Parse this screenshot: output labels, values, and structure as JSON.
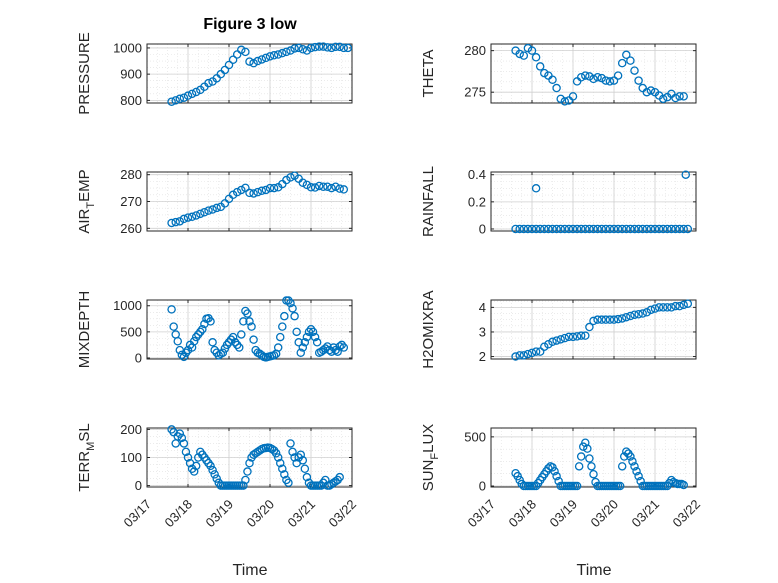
{
  "figure": {
    "title": "Figure 3 low",
    "marker_color": "#0072BD",
    "axis_color": "#262626",
    "grid_color": "#dfdfdf"
  },
  "chart_data": [
    {
      "type": "scatter",
      "id": "pressure",
      "ylabel": "PRESSURE",
      "ylim": [
        790,
        1015
      ],
      "yticks": [
        800,
        900,
        1000
      ],
      "xlim": [
        17,
        22
      ],
      "x": [
        17.6,
        17.7,
        17.8,
        17.9,
        18.0,
        18.1,
        18.2,
        18.3,
        18.4,
        18.5,
        18.6,
        18.7,
        18.8,
        18.9,
        19.0,
        19.1,
        19.2,
        19.3,
        19.4,
        19.5,
        19.6,
        19.7,
        19.8,
        19.9,
        20.0,
        20.1,
        20.2,
        20.3,
        20.4,
        20.5,
        20.6,
        20.7,
        20.8,
        20.9,
        21.0,
        21.1,
        21.2,
        21.3,
        21.4,
        21.5,
        21.6,
        21.7,
        21.8,
        21.9
      ],
      "y": [
        795,
        800,
        806,
        810,
        818,
        825,
        832,
        840,
        852,
        866,
        872,
        884,
        900,
        916,
        935,
        955,
        975,
        993,
        985,
        948,
        942,
        950,
        956,
        962,
        968,
        972,
        975,
        980,
        985,
        990,
        998,
        1000,
        995,
        990,
        1000,
        1003,
        1005,
        1005,
        1002,
        1000,
        1004,
        1004,
        1000,
        1000
      ]
    },
    {
      "type": "scatter",
      "id": "theta",
      "ylabel": "THETA",
      "ylim": [
        273.7,
        280.8
      ],
      "yticks": [
        275,
        280
      ],
      "xlim": [
        17,
        22
      ],
      "x": [
        17.6,
        17.7,
        17.8,
        17.9,
        18.0,
        18.1,
        18.2,
        18.3,
        18.4,
        18.5,
        18.6,
        18.7,
        18.8,
        18.9,
        19.0,
        19.1,
        19.2,
        19.3,
        19.4,
        19.5,
        19.6,
        19.7,
        19.8,
        19.9,
        20.0,
        20.1,
        20.2,
        20.3,
        20.4,
        20.5,
        20.6,
        20.7,
        20.8,
        20.9,
        21.0,
        21.1,
        21.2,
        21.3,
        21.4,
        21.5,
        21.6,
        21.7
      ],
      "y": [
        280,
        279.6,
        279.4,
        280.3,
        280,
        279.2,
        278.1,
        277.3,
        277,
        276.5,
        275.5,
        274.2,
        273.9,
        274,
        274.5,
        276.3,
        276.8,
        277,
        276.9,
        276.6,
        276.8,
        276.7,
        276.4,
        276.3,
        276.4,
        277,
        278.5,
        279.5,
        278.8,
        277.6,
        276.4,
        275.5,
        275,
        275.2,
        275,
        274.6,
        274.2,
        274.4,
        274.8,
        274.3,
        274.5,
        274.5
      ]
    },
    {
      "type": "scatter",
      "id": "air_temp",
      "ylabel": "AIR",
      "ylabel_sub": "T",
      "ylabel_post": "EMP",
      "ylim": [
        259,
        281
      ],
      "yticks": [
        260,
        270,
        280
      ],
      "xlim": [
        17,
        22
      ],
      "x": [
        17.6,
        17.7,
        17.8,
        17.9,
        18.0,
        18.1,
        18.2,
        18.3,
        18.4,
        18.5,
        18.6,
        18.7,
        18.8,
        18.9,
        19.0,
        19.1,
        19.2,
        19.3,
        19.4,
        19.5,
        19.6,
        19.7,
        19.8,
        19.9,
        20.0,
        20.1,
        20.2,
        20.3,
        20.4,
        20.5,
        20.6,
        20.7,
        20.8,
        20.9,
        21.0,
        21.1,
        21.2,
        21.3,
        21.4,
        21.5,
        21.6,
        21.7,
        21.8
      ],
      "y": [
        262,
        262.3,
        262.6,
        263.5,
        264,
        264.3,
        264.8,
        265.4,
        266,
        266.6,
        267,
        267.6,
        268,
        269.3,
        271,
        272.5,
        273.5,
        274.3,
        275.1,
        273.2,
        273,
        273.5,
        274,
        274.3,
        275,
        275,
        275.3,
        276.5,
        278,
        279,
        279.6,
        278.5,
        277,
        276.2,
        275.3,
        275.2,
        275.8,
        275.5,
        275.5,
        275,
        275.5,
        274.8,
        274.5
      ]
    },
    {
      "type": "scatter",
      "id": "rainfall",
      "ylabel": "RAINFALL",
      "ylim": [
        -0.015,
        0.42
      ],
      "yticks": [
        0,
        0.2,
        0.4
      ],
      "ytick_labels": [
        "0",
        "0.2",
        "0.4"
      ],
      "xlim": [
        17,
        22
      ],
      "x": [
        17.6,
        17.7,
        17.8,
        17.9,
        18.0,
        18.1,
        18.2,
        18.3,
        18.4,
        18.5,
        18.6,
        18.7,
        18.8,
        18.9,
        19.0,
        19.1,
        19.2,
        19.3,
        19.4,
        19.5,
        19.6,
        19.7,
        19.8,
        19.9,
        20.0,
        20.1,
        20.2,
        20.3,
        20.4,
        20.5,
        20.6,
        20.7,
        20.8,
        20.9,
        21.0,
        21.1,
        21.2,
        21.3,
        21.4,
        21.5,
        21.6,
        21.7,
        21.8,
        18.1,
        21.75
      ],
      "y": [
        0,
        0,
        0,
        0,
        0,
        0,
        0,
        0,
        0,
        0,
        0,
        0,
        0,
        0,
        0,
        0,
        0,
        0,
        0,
        0,
        0,
        0,
        0,
        0,
        0,
        0,
        0,
        0,
        0,
        0,
        0,
        0,
        0,
        0,
        0,
        0,
        0,
        0,
        0,
        0,
        0,
        0,
        0,
        0.3,
        0.4
      ]
    },
    {
      "type": "scatter",
      "id": "mixdepth",
      "ylabel": "MIXDEPTH",
      "ylim": [
        -20,
        1110
      ],
      "yticks": [
        0,
        500,
        1000
      ],
      "xlim": [
        17,
        22
      ],
      "x": [
        17.6,
        17.65,
        17.7,
        17.75,
        17.8,
        17.85,
        17.9,
        17.95,
        18.0,
        18.05,
        18.1,
        18.15,
        18.2,
        18.25,
        18.3,
        18.35,
        18.4,
        18.45,
        18.5,
        18.55,
        18.6,
        18.65,
        18.7,
        18.75,
        18.8,
        18.85,
        18.9,
        18.95,
        19.0,
        19.05,
        19.1,
        19.15,
        19.2,
        19.25,
        19.3,
        19.35,
        19.4,
        19.45,
        19.5,
        19.55,
        19.6,
        19.65,
        19.7,
        19.75,
        19.8,
        19.85,
        19.9,
        19.95,
        20.0,
        20.05,
        20.1,
        20.15,
        20.2,
        20.25,
        20.3,
        20.35,
        20.4,
        20.45,
        20.5,
        20.55,
        20.6,
        20.65,
        20.7,
        20.75,
        20.8,
        20.85,
        20.9,
        20.95,
        21.0,
        21.05,
        21.1,
        21.15,
        21.2,
        21.25,
        21.3,
        21.35,
        21.4,
        21.45,
        21.5,
        21.55,
        21.6,
        21.65,
        21.7,
        21.75,
        21.8
      ],
      "y": [
        930,
        600,
        450,
        320,
        150,
        60,
        20,
        100,
        150,
        250,
        200,
        320,
        400,
        450,
        500,
        550,
        650,
        750,
        760,
        700,
        300,
        150,
        100,
        50,
        80,
        100,
        180,
        250,
        300,
        350,
        400,
        300,
        250,
        200,
        450,
        700,
        900,
        850,
        700,
        600,
        350,
        150,
        100,
        80,
        50,
        20,
        10,
        20,
        30,
        40,
        50,
        80,
        200,
        400,
        600,
        800,
        1100,
        1100,
        1050,
        950,
        800,
        500,
        300,
        100,
        200,
        300,
        400,
        500,
        550,
        500,
        400,
        300,
        100,
        120,
        150,
        180,
        220,
        150,
        120,
        200,
        150,
        120,
        220,
        250,
        200
      ]
    },
    {
      "type": "scatter",
      "id": "h2omixra",
      "ylabel": "H2OMIXRA",
      "ylim": [
        1.9,
        4.3
      ],
      "yticks": [
        2,
        3,
        4
      ],
      "xlim": [
        17,
        22
      ],
      "x": [
        17.6,
        17.7,
        17.8,
        17.9,
        18.0,
        18.1,
        18.2,
        18.3,
        18.4,
        18.5,
        18.6,
        18.7,
        18.8,
        18.9,
        19.0,
        19.1,
        19.2,
        19.3,
        19.4,
        19.5,
        19.6,
        19.7,
        19.8,
        19.9,
        20.0,
        20.1,
        20.2,
        20.3,
        20.4,
        20.5,
        20.6,
        20.7,
        20.8,
        20.9,
        21.0,
        21.1,
        21.2,
        21.3,
        21.4,
        21.5,
        21.6,
        21.7,
        21.8
      ],
      "y": [
        2.0,
        2.05,
        2.05,
        2.1,
        2.15,
        2.2,
        2.2,
        2.4,
        2.5,
        2.6,
        2.65,
        2.7,
        2.75,
        2.8,
        2.8,
        2.82,
        2.85,
        2.85,
        3.2,
        3.45,
        3.5,
        3.5,
        3.5,
        3.5,
        3.5,
        3.52,
        3.55,
        3.6,
        3.65,
        3.7,
        3.72,
        3.75,
        3.8,
        3.9,
        3.95,
        4.0,
        4.0,
        4.0,
        4.0,
        4.05,
        4.05,
        4.1,
        4.15
      ]
    },
    {
      "type": "scatter",
      "id": "terr_msl",
      "ylabel": "TERR",
      "ylabel_sub": "M",
      "ylabel_post": "SL",
      "ylim": [
        -5,
        205
      ],
      "yticks": [
        0,
        100,
        200
      ],
      "xlim": [
        17,
        22
      ],
      "x": [
        17.6,
        17.65,
        17.7,
        17.75,
        17.8,
        17.85,
        17.9,
        17.95,
        18.0,
        18.05,
        18.1,
        18.15,
        18.2,
        18.25,
        18.3,
        18.35,
        18.4,
        18.45,
        18.5,
        18.55,
        18.6,
        18.65,
        18.7,
        18.75,
        18.8,
        18.85,
        18.9,
        18.95,
        19.0,
        19.05,
        19.1,
        19.15,
        19.2,
        19.25,
        19.3,
        19.35,
        19.4,
        19.45,
        19.5,
        19.55,
        19.6,
        19.65,
        19.7,
        19.75,
        19.8,
        19.85,
        19.9,
        19.95,
        20.0,
        20.05,
        20.1,
        20.15,
        20.2,
        20.25,
        20.3,
        20.35,
        20.4,
        20.45,
        20.5,
        20.55,
        20.6,
        20.65,
        20.7,
        20.75,
        20.8,
        20.85,
        20.9,
        20.95,
        21.0,
        21.05,
        21.1,
        21.15,
        21.2,
        21.25,
        21.3,
        21.35,
        21.4,
        21.45,
        21.5,
        21.55,
        21.6,
        21.65,
        21.7
      ],
      "y": [
        200,
        190,
        150,
        175,
        185,
        170,
        150,
        120,
        100,
        80,
        60,
        50,
        70,
        100,
        120,
        110,
        100,
        90,
        80,
        70,
        55,
        40,
        25,
        10,
        0,
        0,
        0,
        0,
        0,
        0,
        0,
        0,
        0,
        0,
        0,
        0,
        20,
        50,
        80,
        100,
        110,
        115,
        120,
        125,
        130,
        133,
        134,
        135,
        134,
        130,
        125,
        115,
        100,
        80,
        60,
        40,
        20,
        10,
        150,
        120,
        100,
        80,
        100,
        110,
        90,
        60,
        30,
        10,
        0,
        0,
        0,
        0,
        0,
        0,
        10,
        20,
        0,
        0,
        5,
        10,
        15,
        20,
        30
      ]
    },
    {
      "type": "scatter",
      "id": "sun_flux",
      "ylabel": "SUN",
      "ylabel_sub": "F",
      "ylabel_post": "LUX",
      "ylim": [
        -10,
        590
      ],
      "yticks": [
        0,
        500
      ],
      "xlim": [
        17,
        22
      ],
      "x": [
        17.6,
        17.65,
        17.7,
        17.75,
        17.8,
        17.85,
        17.9,
        17.95,
        18.0,
        18.05,
        18.1,
        18.15,
        18.2,
        18.25,
        18.3,
        18.35,
        18.4,
        18.45,
        18.5,
        18.55,
        18.6,
        18.65,
        18.7,
        18.75,
        18.8,
        18.85,
        18.9,
        18.95,
        19.0,
        19.05,
        19.1,
        19.15,
        19.2,
        19.25,
        19.3,
        19.35,
        19.4,
        19.45,
        19.5,
        19.55,
        19.6,
        19.65,
        19.7,
        19.75,
        19.8,
        19.85,
        19.9,
        19.95,
        20.0,
        20.05,
        20.1,
        20.15,
        20.2,
        20.25,
        20.3,
        20.35,
        20.4,
        20.45,
        20.5,
        20.55,
        20.6,
        20.65,
        20.7,
        20.75,
        20.8,
        20.85,
        20.9,
        20.95,
        21.0,
        21.05,
        21.1,
        21.15,
        21.2,
        21.25,
        21.3,
        21.35,
        21.4,
        21.45,
        21.5,
        21.55,
        21.6,
        21.65,
        21.7
      ],
      "y": [
        130,
        100,
        60,
        20,
        0,
        0,
        0,
        0,
        0,
        0,
        0,
        30,
        60,
        90,
        120,
        150,
        180,
        200,
        190,
        150,
        100,
        50,
        0,
        0,
        0,
        0,
        0,
        0,
        0,
        0,
        0,
        200,
        300,
        400,
        440,
        380,
        280,
        200,
        120,
        40,
        0,
        0,
        0,
        0,
        0,
        0,
        0,
        0,
        0,
        0,
        0,
        0,
        200,
        300,
        350,
        330,
        300,
        250,
        200,
        150,
        100,
        50,
        0,
        0,
        0,
        0,
        0,
        0,
        0,
        0,
        0,
        0,
        0,
        0,
        0,
        30,
        60,
        40,
        30,
        20,
        20,
        20,
        10
      ]
    }
  ],
  "shared_x": {
    "tick_values": [
      17,
      18,
      19,
      20,
      21,
      22
    ],
    "tick_labels": [
      "03/17",
      "03/18",
      "03/19",
      "03/20",
      "03/21",
      "03/22"
    ],
    "xlabel": "Time"
  }
}
